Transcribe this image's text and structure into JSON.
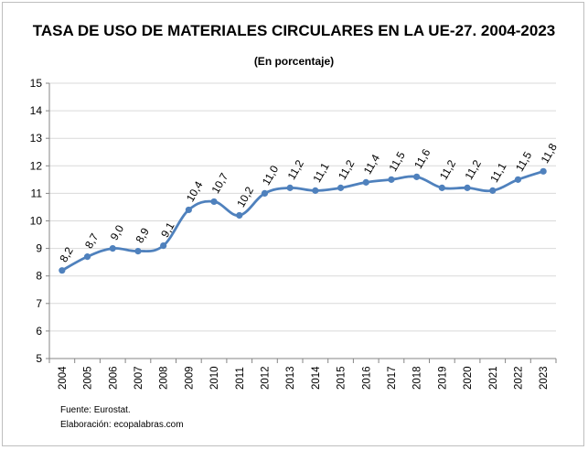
{
  "chart_data": {
    "type": "line",
    "title": "TASA DE USO DE MATERIALES CIRCULARES EN LA UE-27. 2004-2023",
    "subtitle": "(En porcentaje)",
    "categories": [
      "2004",
      "2005",
      "2006",
      "2007",
      "2008",
      "2009",
      "2010",
      "2011",
      "2012",
      "2013",
      "2014",
      "2015",
      "2016",
      "2017",
      "2018",
      "2019",
      "2020",
      "2021",
      "2022",
      "2023"
    ],
    "values": [
      8.2,
      8.7,
      9.0,
      8.9,
      9.1,
      10.4,
      10.7,
      10.2,
      11.0,
      11.2,
      11.1,
      11.2,
      11.4,
      11.5,
      11.6,
      11.2,
      11.2,
      11.1,
      11.5,
      11.8
    ],
    "data_labels": [
      "8,2",
      "8,7",
      "9,0",
      "8,9",
      "9,1",
      "10,4",
      "10,7",
      "10,2",
      "11,0",
      "11,2",
      "11,1",
      "11,2",
      "11,4",
      "11,5",
      "11,6",
      "11,2",
      "11,2",
      "11,1",
      "11,5",
      "11,8"
    ],
    "y_ticks": [
      "5",
      "6",
      "7",
      "8",
      "9",
      "10",
      "11",
      "12",
      "13",
      "14",
      "15"
    ],
    "ylim": [
      5,
      15
    ],
    "xlabel": "",
    "ylabel": "",
    "grid": true,
    "legend": "none",
    "line_color": "#4f81bd"
  },
  "footer": {
    "source": "Fuente: Eurostat.",
    "credit": "Elaboración: ecopalabras.com"
  }
}
